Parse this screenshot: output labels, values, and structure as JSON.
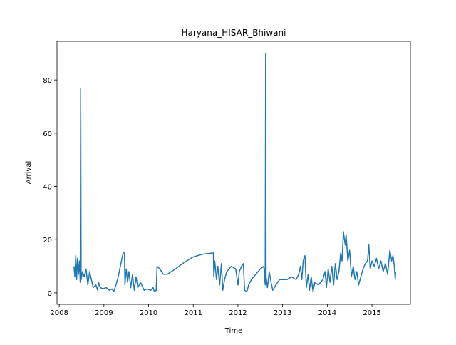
{
  "chart_data": {
    "type": "line",
    "title": "Haryana_HISAR_Bhiwani",
    "x_label": "Time",
    "y_label": "Arrival",
    "color": "#1f77b4",
    "x": [
      2008.33,
      2008.35,
      2008.37,
      2008.39,
      2008.41,
      2008.43,
      2008.45,
      2008.47,
      2008.48,
      2008.49,
      2008.52,
      2008.56,
      2008.6,
      2008.64,
      2008.68,
      2008.72,
      2008.76,
      2008.82,
      2008.86,
      2008.88,
      2008.92,
      2008.98,
      2009.05,
      2009.12,
      2009.18,
      2009.22,
      2009.27,
      2009.32,
      2009.38,
      2009.43,
      2009.46,
      2009.47,
      2009.5,
      2009.53,
      2009.56,
      2009.6,
      2009.64,
      2009.68,
      2009.72,
      2009.76,
      2009.82,
      2009.9,
      2009.97,
      2010.05,
      2010.1,
      2010.13,
      2010.17,
      2010.19,
      2010.25,
      2010.33,
      2010.42,
      2010.6,
      2010.8,
      2011.0,
      2011.2,
      2011.45,
      2011.46,
      2011.48,
      2011.52,
      2011.55,
      2011.59,
      2011.63,
      2011.66,
      2011.7,
      2011.75,
      2011.85,
      2011.95,
      2012.0,
      2012.03,
      2012.08,
      2012.12,
      2012.15,
      2012.2,
      2012.24,
      2012.3,
      2012.4,
      2012.5,
      2012.58,
      2012.61,
      2012.62,
      2012.63,
      2012.66,
      2012.7,
      2012.74,
      2012.78,
      2012.85,
      2012.93,
      2013.0,
      2013.1,
      2013.2,
      2013.3,
      2013.36,
      2013.4,
      2013.43,
      2013.46,
      2013.5,
      2013.53,
      2013.57,
      2013.6,
      2013.64,
      2013.68,
      2013.72,
      2013.8,
      2013.9,
      2013.95,
      2013.98,
      2014.02,
      2014.06,
      2014.1,
      2014.14,
      2014.18,
      2014.22,
      2014.26,
      2014.3,
      2014.33,
      2014.36,
      2014.4,
      2014.42,
      2014.46,
      2014.5,
      2014.54,
      2014.58,
      2014.62,
      2014.66,
      2014.7,
      2014.75,
      2014.8,
      2014.85,
      2014.9,
      2014.93,
      2014.96,
      2015.0,
      2015.05,
      2015.1,
      2015.15,
      2015.2,
      2015.25,
      2015.3,
      2015.35,
      2015.4,
      2015.44,
      2015.47,
      2015.5,
      2015.52,
      2015.53
    ],
    "values": [
      10,
      6,
      14,
      5,
      13,
      7,
      12,
      4,
      77,
      5,
      8,
      6,
      9,
      3,
      8,
      5,
      2,
      3,
      1,
      4,
      2,
      1.5,
      2,
      1,
      1.5,
      0.5,
      3,
      6,
      11,
      15,
      15,
      3,
      9,
      4,
      8,
      2,
      7,
      1,
      6,
      2,
      4,
      1,
      1.5,
      1,
      2,
      0.5,
      1,
      10,
      9,
      7,
      7,
      9,
      11.5,
      13.5,
      14.5,
      15,
      6,
      12,
      5,
      10,
      3,
      11,
      1,
      5,
      8,
      10,
      9,
      3,
      8,
      10,
      11,
      1,
      0.5,
      3,
      5,
      7,
      9,
      10,
      3,
      90,
      6,
      2,
      8,
      4,
      1,
      3,
      5,
      5,
      5,
      6,
      5,
      7,
      10,
      5,
      12,
      14,
      2,
      7,
      1,
      6,
      0.5,
      4,
      3,
      5,
      8,
      2,
      9,
      4,
      10,
      3,
      11,
      5,
      8,
      15,
      12,
      23,
      18,
      22,
      12,
      16,
      6,
      10,
      5,
      8,
      3,
      6,
      9,
      11,
      12,
      18,
      9,
      12,
      10,
      13,
      9,
      12,
      8,
      11,
      7,
      16,
      12,
      14,
      10,
      5,
      8
    ],
    "xlim": [
      2007.95,
      2015.86
    ],
    "ylim": [
      -4.3,
      94.5
    ],
    "xticks": [
      2008,
      2009,
      2010,
      2011,
      2012,
      2013,
      2014,
      2015
    ],
    "yticks": [
      0,
      20,
      40,
      60,
      80
    ]
  }
}
